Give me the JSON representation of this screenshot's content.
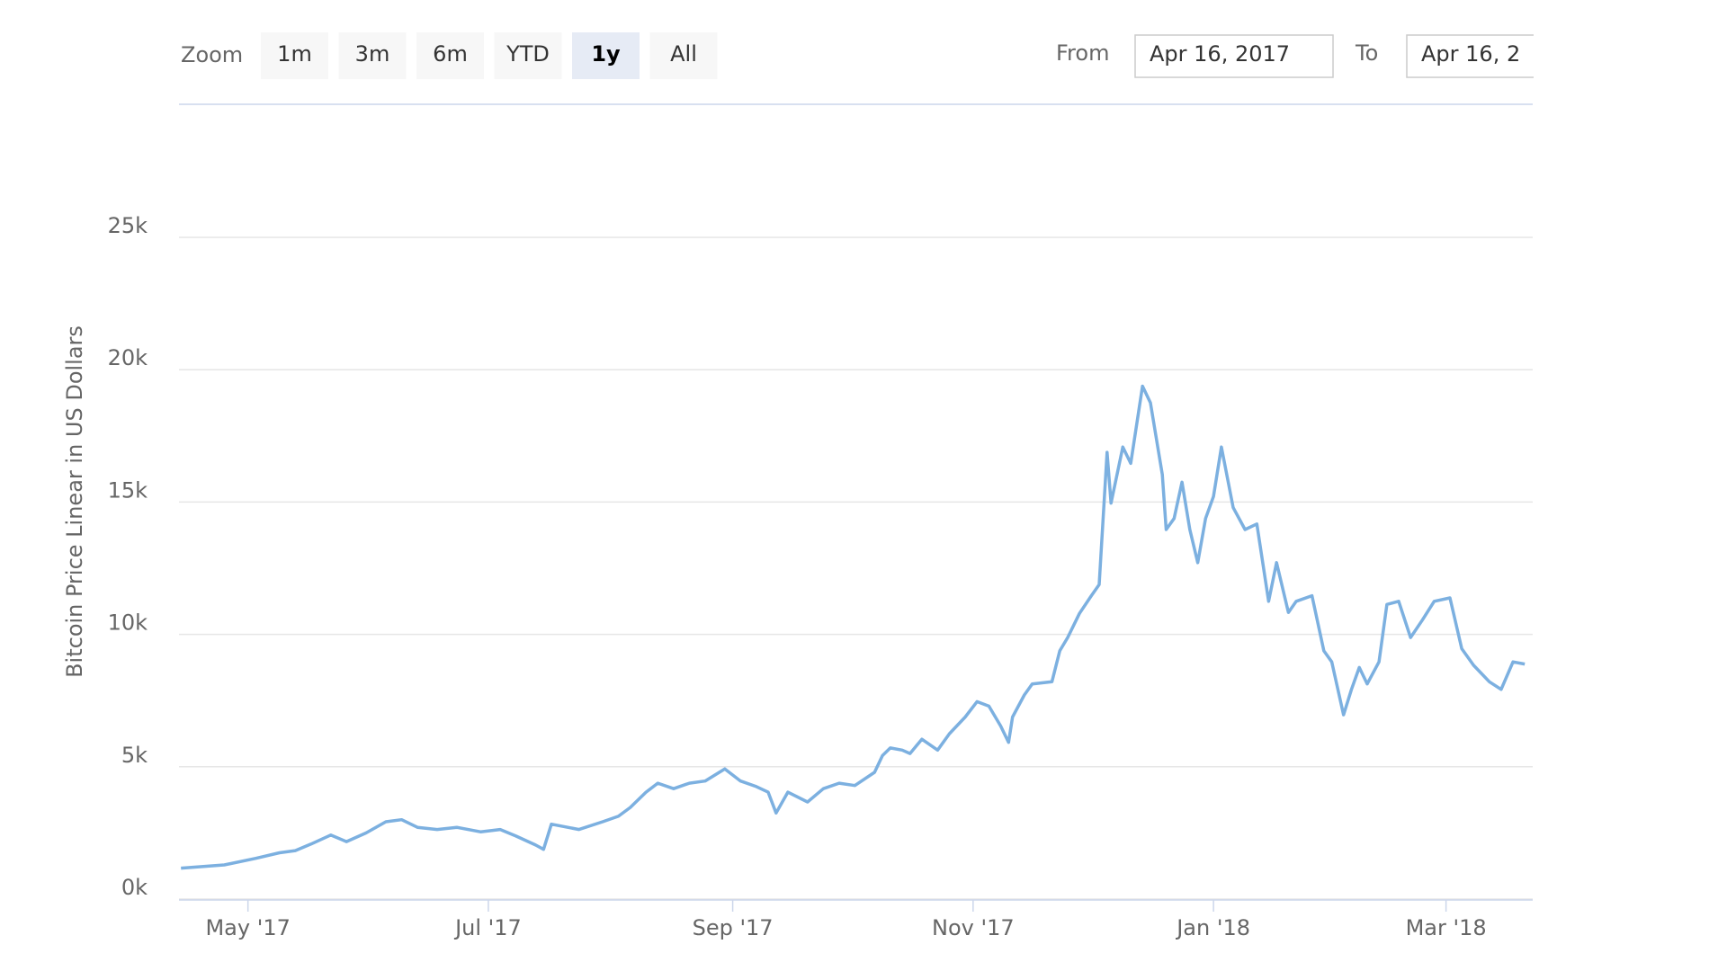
{
  "range_selector": {
    "label": "Zoom",
    "buttons": [
      "1m",
      "3m",
      "6m",
      "YTD",
      "1y",
      "All"
    ],
    "selected": 4,
    "from_label": "From",
    "from": "Apr 16, 2017",
    "to_label": "To",
    "to": "Apr 16, 2"
  },
  "chart_data": {
    "type": "line",
    "y_axis_title": "Bitcoin Price Linear in US Dollars",
    "color": "#7cb0e0",
    "grid": true,
    "x": [
      -2,
      9,
      17,
      23,
      27,
      31,
      36,
      40,
      45,
      50,
      54,
      58,
      63,
      68,
      74,
      79,
      83,
      88,
      90,
      92,
      99,
      105,
      109,
      112,
      116,
      119,
      123,
      127,
      131,
      136,
      140,
      144,
      147,
      149,
      152,
      157,
      161,
      165,
      169,
      174,
      176,
      178,
      181,
      183,
      186,
      190,
      193,
      197,
      200,
      203,
      206,
      208,
      209,
      212,
      214,
      219,
      221,
      223,
      226,
      229,
      231,
      233,
      234,
      237,
      239,
      242,
      244,
      247,
      248,
      250,
      252,
      254,
      256,
      258,
      260,
      262,
      265,
      268,
      271,
      274,
      276,
      279,
      281,
      285,
      288,
      290,
      293,
      295,
      297,
      299,
      302,
      304,
      307,
      310,
      313,
      316,
      320,
      323,
      326,
      330,
      333,
      336,
      339
    ],
    "values": [
      1170,
      1290,
      1540,
      1750,
      1830,
      2080,
      2420,
      2170,
      2500,
      2920,
      3000,
      2710,
      2630,
      2710,
      2540,
      2630,
      2380,
      2040,
      1880,
      2830,
      2630,
      2920,
      3130,
      3460,
      4040,
      4380,
      4170,
      4380,
      4460,
      4920,
      4460,
      4250,
      4040,
      3250,
      4040,
      3670,
      4170,
      4380,
      4290,
      4790,
      5420,
      5710,
      5630,
      5500,
      6040,
      5630,
      6250,
      6880,
      7460,
      7290,
      6540,
      5920,
      6880,
      7710,
      8130,
      8210,
      9380,
      9880,
      10790,
      11460,
      11880,
      16880,
      14960,
      17080,
      16460,
      19380,
      18750,
      16040,
      13960,
      14380,
      15750,
      13960,
      12710,
      14380,
      15210,
      17080,
      14790,
      13960,
      14170,
      11250,
      12710,
      10830,
      11250,
      11460,
      9380,
      8960,
      6960,
      7920,
      8750,
      8130,
      8960,
      11130,
      11250,
      9880,
      10540,
      11250,
      11380,
      9460,
      8830,
      8210,
      7920,
      8960,
      8880
    ],
    "xlim": [
      -2.5,
      341
    ],
    "xticks": [
      {
        "value": 15,
        "label": "May '17"
      },
      {
        "value": 76,
        "label": "Jul '17"
      },
      {
        "value": 138,
        "label": "Sep '17"
      },
      {
        "value": 199,
        "label": "Nov '17"
      },
      {
        "value": 260,
        "label": "Jan '18"
      },
      {
        "value": 319,
        "label": "Mar '18"
      }
    ],
    "ylim": [
      0,
      30000
    ],
    "yticks": [
      {
        "value": 0,
        "label": "0k"
      },
      {
        "value": 5000,
        "label": "5k"
      },
      {
        "value": 10000,
        "label": "10k"
      },
      {
        "value": 15000,
        "label": "15k"
      },
      {
        "value": 20000,
        "label": "20k"
      },
      {
        "value": 25000,
        "label": "25k"
      }
    ]
  }
}
